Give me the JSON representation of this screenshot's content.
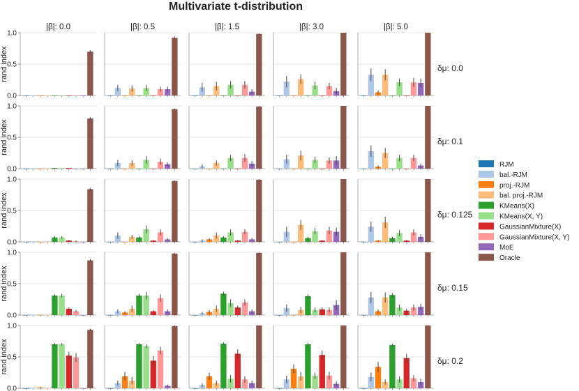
{
  "colors": {
    "RJM": "#1f77b4",
    "bal.-RJM": "#aec7e8",
    "proj.-RJM": "#ff7f0e",
    "bal. proj.-RJM": "#ffbb78",
    "KMeans(X)": "#2ca02c",
    "KMeans(X, Y)": "#98df8a",
    "GaussianMixture(X)": "#d62728",
    "GaussianMixture(X, Y)": "#ff9896",
    "MoE": "#9467bd",
    "Oracle": "#8c564b"
  },
  "chart_data": {
    "type": "bar",
    "title": "Multivariate t-distribution",
    "ylabel": "rand index",
    "ylim": [
      0,
      1.0
    ],
    "yticks": [
      "0.0",
      "0.5",
      "1.0"
    ],
    "ytick_values": [
      0,
      0.5,
      1.0
    ],
    "grid": true,
    "legend_position": "right",
    "methods": [
      "RJM",
      "bal.-RJM",
      "proj.-RJM",
      "bal. proj.-RJM",
      "KMeans(X)",
      "KMeans(X, Y)",
      "GaussianMixture(X)",
      "GaussianMixture(X, Y)",
      "MoE",
      "Oracle"
    ],
    "col_labels": [
      "|β|: 0.0",
      "|β|: 0.5",
      "|β|: 1.5",
      "|β|: 3.0",
      "|β|: 5.0"
    ],
    "row_labels": [
      "δμ: 0.0",
      "δμ: 0.1",
      "δμ: 0.125",
      "δμ: 0.15",
      "δμ: 0.2"
    ],
    "values": [
      [
        [
          0,
          0,
          0,
          0,
          0,
          0,
          0,
          0,
          0,
          0.7
        ],
        [
          0,
          0.12,
          0,
          0.11,
          0,
          0.12,
          0,
          0.1,
          0.1,
          0.92
        ],
        [
          0,
          0.13,
          0,
          0.15,
          0,
          0.17,
          0,
          0.17,
          0.06,
          0.98
        ],
        [
          0,
          0.22,
          0,
          0.26,
          0,
          0.16,
          0,
          0.15,
          0.07,
          1.0
        ],
        [
          0,
          0.33,
          0.05,
          0.33,
          0,
          0.21,
          0,
          0.21,
          0.2,
          1.0
        ]
      ],
      [
        [
          0,
          0,
          0,
          0,
          0.01,
          0.01,
          0.01,
          0,
          0,
          0.8
        ],
        [
          0,
          0.09,
          0,
          0.09,
          0,
          0.14,
          0,
          0.11,
          0.07,
          0.95
        ],
        [
          0,
          0.04,
          0,
          0.09,
          0,
          0.17,
          0,
          0.17,
          0.08,
          0.99
        ],
        [
          0,
          0.15,
          0,
          0.21,
          0,
          0.14,
          0,
          0.13,
          0.13,
          1.0
        ],
        [
          0,
          0.28,
          0.03,
          0.25,
          0,
          0.17,
          0,
          0.17,
          0.05,
          1.0
        ]
      ],
      [
        [
          0,
          0,
          0,
          0,
          0.07,
          0.07,
          0.02,
          0.01,
          0,
          0.84
        ],
        [
          0,
          0.1,
          0,
          0.08,
          0.07,
          0.2,
          0.02,
          0.15,
          0.04,
          0.97
        ],
        [
          0,
          0.02,
          0.04,
          0.1,
          0.07,
          0.15,
          0.02,
          0.16,
          0.04,
          0.99
        ],
        [
          0,
          0.16,
          0,
          0.27,
          0.06,
          0.17,
          0.02,
          0.18,
          0.16,
          1.0
        ],
        [
          0,
          0.24,
          0.02,
          0.31,
          0.06,
          0.14,
          0.02,
          0.15,
          0.08,
          1.0
        ]
      ],
      [
        [
          0,
          0,
          0,
          0,
          0.31,
          0.31,
          0.1,
          0.06,
          0,
          0.87
        ],
        [
          0,
          0.06,
          0.04,
          0.1,
          0.31,
          0.31,
          0.06,
          0.27,
          0.06,
          0.98
        ],
        [
          0,
          0.03,
          0.05,
          0.1,
          0.34,
          0.19,
          0.12,
          0.2,
          0.06,
          0.99
        ],
        [
          0,
          0.11,
          0,
          0.08,
          0.3,
          0.08,
          0.09,
          0.08,
          0.16,
          1.0
        ],
        [
          0,
          0.28,
          0.06,
          0.28,
          0.32,
          0.12,
          0.07,
          0.12,
          0.13,
          1.0
        ]
      ],
      [
        [
          0,
          0,
          0.01,
          0,
          0.7,
          0.7,
          0.52,
          0.49,
          0,
          0.93
        ],
        [
          0,
          0.08,
          0.19,
          0.12,
          0.7,
          0.67,
          0.44,
          0.6,
          0.04,
          0.99
        ],
        [
          0,
          0.05,
          0.19,
          0.08,
          0.71,
          0.15,
          0.55,
          0.14,
          0.08,
          1.0
        ],
        [
          0,
          0.14,
          0.31,
          0.19,
          0.7,
          0.2,
          0.53,
          0.2,
          0.07,
          1.0
        ],
        [
          0,
          0.18,
          0.34,
          0.1,
          0.69,
          0.14,
          0.48,
          0.16,
          0.1,
          1.0
        ]
      ]
    ],
    "errors": [
      [
        [
          0,
          0,
          0,
          0,
          0,
          0,
          0,
          0,
          0,
          0.02
        ],
        [
          0,
          0.05,
          0,
          0.05,
          0,
          0.05,
          0,
          0.04,
          0.04,
          0.02
        ],
        [
          0,
          0.07,
          0,
          0.07,
          0,
          0.06,
          0,
          0.06,
          0.04,
          0.01
        ],
        [
          0,
          0.09,
          0,
          0.08,
          0,
          0.06,
          0,
          0.05,
          0.05,
          0.0
        ],
        [
          0,
          0.1,
          0.03,
          0.09,
          0,
          0.06,
          0,
          0.07,
          0.07,
          0.0
        ]
      ],
      [
        [
          0,
          0,
          0,
          0,
          0,
          0,
          0,
          0,
          0,
          0.02
        ],
        [
          0,
          0.05,
          0,
          0.04,
          0,
          0.06,
          0,
          0.05,
          0.03,
          0.01
        ],
        [
          0,
          0.03,
          0,
          0.04,
          0,
          0.05,
          0,
          0.06,
          0.04,
          0.01
        ],
        [
          0,
          0.07,
          0,
          0.08,
          0,
          0.05,
          0,
          0.05,
          0.07,
          0.0
        ],
        [
          0,
          0.09,
          0.02,
          0.08,
          0,
          0.05,
          0,
          0.05,
          0.03,
          0.0
        ]
      ],
      [
        [
          0,
          0,
          0,
          0,
          0.02,
          0.02,
          0.01,
          0.01,
          0,
          0.02
        ],
        [
          0,
          0.05,
          0,
          0.03,
          0.02,
          0.06,
          0.01,
          0.05,
          0.02,
          0.01
        ],
        [
          0,
          0.02,
          0.02,
          0.05,
          0.02,
          0.05,
          0.01,
          0.04,
          0.02,
          0.01
        ],
        [
          0,
          0.08,
          0,
          0.08,
          0.02,
          0.05,
          0.01,
          0.06,
          0.07,
          0.0
        ],
        [
          0,
          0.08,
          0.01,
          0.09,
          0.02,
          0.05,
          0.01,
          0.05,
          0.04,
          0.0
        ]
      ],
      [
        [
          0,
          0,
          0,
          0,
          0.02,
          0.03,
          0.02,
          0.02,
          0,
          0.02
        ],
        [
          0,
          0.03,
          0.02,
          0.05,
          0.03,
          0.06,
          0.02,
          0.06,
          0.03,
          0.01
        ],
        [
          0,
          0.02,
          0.03,
          0.05,
          0.03,
          0.06,
          0.03,
          0.05,
          0.03,
          0.01
        ],
        [
          0,
          0.06,
          0,
          0.05,
          0.03,
          0.04,
          0.03,
          0.04,
          0.08,
          0.0
        ],
        [
          0,
          0.09,
          0.03,
          0.08,
          0.03,
          0.05,
          0.03,
          0.05,
          0.05,
          0.0
        ]
      ],
      [
        [
          0,
          0,
          0.01,
          0,
          0.02,
          0.02,
          0.06,
          0.07,
          0,
          0.02
        ],
        [
          0,
          0.04,
          0.07,
          0.06,
          0.02,
          0.03,
          0.07,
          0.06,
          0.02,
          0.01
        ],
        [
          0,
          0.03,
          0.06,
          0.04,
          0.02,
          0.06,
          0.07,
          0.05,
          0.04,
          0.0
        ],
        [
          0,
          0.06,
          0.07,
          0.07,
          0.02,
          0.05,
          0.07,
          0.06,
          0.04,
          0.0
        ],
        [
          0,
          0.07,
          0.08,
          0.04,
          0.02,
          0.05,
          0.07,
          0.05,
          0.05,
          0.0
        ]
      ]
    ]
  }
}
